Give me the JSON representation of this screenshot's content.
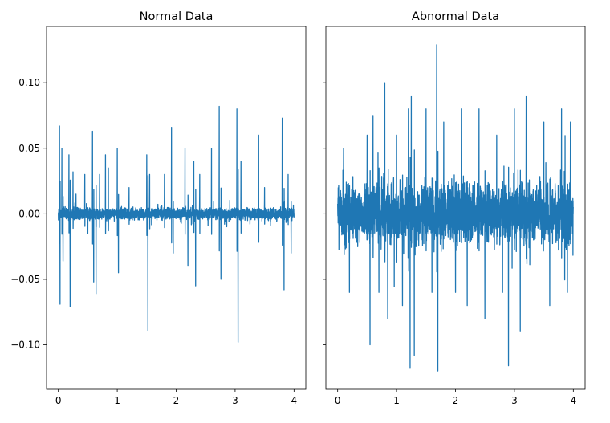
{
  "chart_data": [
    {
      "type": "line",
      "title": "Normal Data",
      "xlabel": "",
      "ylabel": "",
      "xlim": [
        -0.2,
        4.2
      ],
      "ylim": [
        -0.134,
        0.143
      ],
      "x_ticks": [
        0,
        1,
        2,
        3,
        4
      ],
      "x_tick_labels": [
        "0",
        "1",
        "2",
        "3",
        "4"
      ],
      "y_ticks": [
        0.1,
        0.05,
        0.0,
        -0.05,
        -0.1
      ],
      "y_tick_labels": [
        "0.10",
        "0.05",
        "0.00",
        "−0.05",
        "−0.10"
      ],
      "grid": false,
      "series": [
        {
          "color": "#1f77b4",
          "noise_amplitude": 0.006,
          "x_range": [
            0,
            4
          ],
          "peaks": [
            [
              0.02,
              0.067
            ],
            [
              0.03,
              -0.069
            ],
            [
              0.06,
              0.05
            ],
            [
              0.08,
              -0.036
            ],
            [
              0.18,
              0.045
            ],
            [
              0.2,
              -0.071
            ],
            [
              0.25,
              0.032
            ],
            [
              0.3,
              0.015
            ],
            [
              0.45,
              0.03
            ],
            [
              0.5,
              -0.015
            ],
            [
              0.58,
              0.063
            ],
            [
              0.6,
              -0.052
            ],
            [
              0.64,
              -0.061
            ],
            [
              0.7,
              0.03
            ],
            [
              0.8,
              0.045
            ],
            [
              0.85,
              0.035
            ],
            [
              1.0,
              0.05
            ],
            [
              1.02,
              -0.045
            ],
            [
              1.2,
              0.02
            ],
            [
              1.5,
              0.045
            ],
            [
              1.52,
              -0.089
            ],
            [
              1.55,
              0.03
            ],
            [
              1.8,
              0.03
            ],
            [
              1.92,
              0.066
            ],
            [
              1.95,
              -0.03
            ],
            [
              2.15,
              0.05
            ],
            [
              2.2,
              -0.04
            ],
            [
              2.3,
              0.04
            ],
            [
              2.33,
              -0.055
            ],
            [
              2.4,
              0.03
            ],
            [
              2.6,
              0.05
            ],
            [
              2.73,
              0.082
            ],
            [
              2.76,
              -0.05
            ],
            [
              3.03,
              0.08
            ],
            [
              3.05,
              -0.098
            ],
            [
              3.1,
              0.04
            ],
            [
              3.4,
              0.06
            ],
            [
              3.5,
              0.02
            ],
            [
              3.8,
              0.073
            ],
            [
              3.83,
              -0.058
            ],
            [
              3.9,
              0.03
            ],
            [
              3.95,
              -0.03
            ]
          ]
        }
      ]
    },
    {
      "type": "line",
      "title": "Abnormal Data",
      "xlabel": "",
      "ylabel": "",
      "xlim": [
        -0.2,
        4.2
      ],
      "ylim": [
        -0.134,
        0.143
      ],
      "x_ticks": [
        0,
        1,
        2,
        3,
        4
      ],
      "x_tick_labels": [
        "0",
        "1",
        "2",
        "3",
        "4"
      ],
      "y_ticks": [
        0.1,
        0.05,
        0.0,
        -0.05,
        -0.1
      ],
      "y_tick_labels": [
        "",
        "",
        "",
        "",
        ""
      ],
      "grid": false,
      "series": [
        {
          "color": "#1f77b4",
          "noise_amplitude": 0.03,
          "x_range": [
            0,
            4
          ],
          "peaks": [
            [
              0.1,
              0.05
            ],
            [
              0.2,
              -0.06
            ],
            [
              0.5,
              0.06
            ],
            [
              0.55,
              -0.1
            ],
            [
              0.6,
              0.075
            ],
            [
              0.7,
              -0.06
            ],
            [
              0.8,
              0.1
            ],
            [
              0.85,
              -0.08
            ],
            [
              1.0,
              0.06
            ],
            [
              1.1,
              -0.07
            ],
            [
              1.2,
              0.08
            ],
            [
              1.23,
              -0.118
            ],
            [
              1.25,
              0.09
            ],
            [
              1.3,
              -0.108
            ],
            [
              1.5,
              0.08
            ],
            [
              1.6,
              -0.06
            ],
            [
              1.68,
              0.129
            ],
            [
              1.7,
              -0.12
            ],
            [
              1.8,
              0.07
            ],
            [
              2.0,
              -0.06
            ],
            [
              2.1,
              0.08
            ],
            [
              2.2,
              -0.07
            ],
            [
              2.4,
              0.08
            ],
            [
              2.5,
              -0.08
            ],
            [
              2.7,
              0.06
            ],
            [
              2.8,
              -0.06
            ],
            [
              2.9,
              -0.116
            ],
            [
              3.0,
              0.08
            ],
            [
              3.1,
              -0.09
            ],
            [
              3.2,
              0.09
            ],
            [
              3.5,
              0.07
            ],
            [
              3.6,
              -0.07
            ],
            [
              3.8,
              0.08
            ],
            [
              3.9,
              -0.06
            ],
            [
              3.95,
              0.07
            ]
          ]
        }
      ]
    }
  ]
}
